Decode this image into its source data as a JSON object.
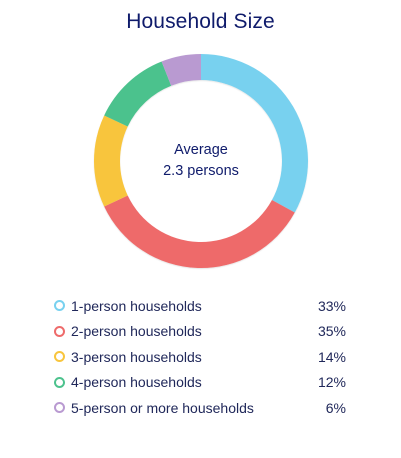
{
  "chart_data": {
    "type": "pie",
    "title": "Household Size",
    "center_label": [
      "Average",
      "2.3 persons"
    ],
    "categories": [
      "1-person households",
      "2-person households",
      "3-person households",
      "4-person households",
      "5-person or more households"
    ],
    "values": [
      33,
      35,
      14,
      12,
      6
    ],
    "value_labels": [
      "33%",
      "35%",
      "14%",
      "12%",
      "6%"
    ],
    "colors": [
      "#78d1ef",
      "#ee6b6b",
      "#f8c53d",
      "#4cc28d",
      "#b99ad1"
    ],
    "legend_placement": "bottom"
  }
}
